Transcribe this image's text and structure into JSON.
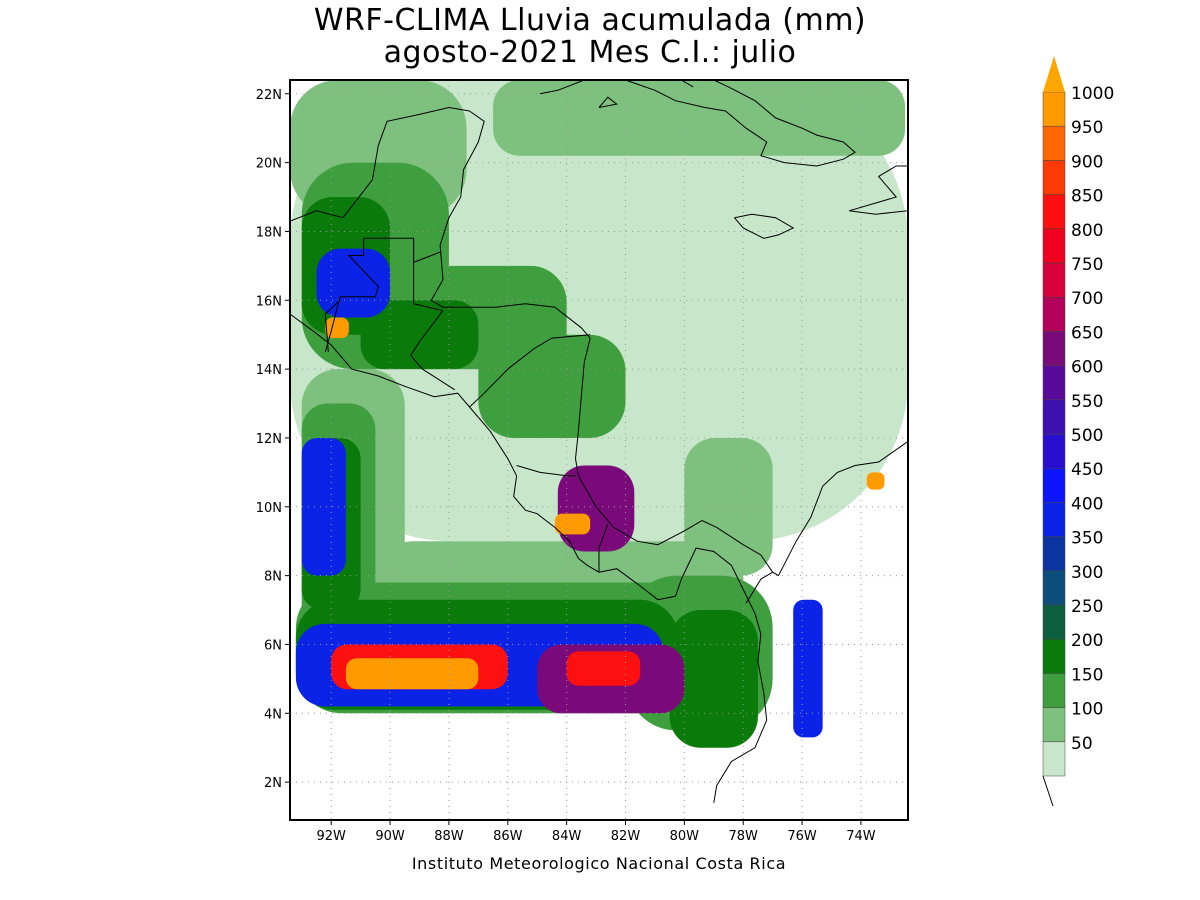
{
  "title": {
    "line1": "WRF-CLIMA Lluvia acumulada (mm)",
    "line2": "agosto-2021 Mes C.I.: julio"
  },
  "credit": "Instituto Meteorologico Nacional Costa Rica",
  "map": {
    "lon_range": [
      -93.4,
      -72.4
    ],
    "lat_range": [
      0.9,
      22.4
    ],
    "lon_ticks": [
      {
        "value": -92,
        "label": "92W"
      },
      {
        "value": -90,
        "label": "90W"
      },
      {
        "value": -88,
        "label": "88W"
      },
      {
        "value": -86,
        "label": "86W"
      },
      {
        "value": -84,
        "label": "84W"
      },
      {
        "value": -82,
        "label": "82W"
      },
      {
        "value": -80,
        "label": "80W"
      },
      {
        "value": -78,
        "label": "78W"
      },
      {
        "value": -76,
        "label": "76W"
      },
      {
        "value": -74,
        "label": "74W"
      }
    ],
    "lat_ticks": [
      {
        "value": 2,
        "label": "2N"
      },
      {
        "value": 4,
        "label": "4N"
      },
      {
        "value": 6,
        "label": "6N"
      },
      {
        "value": 8,
        "label": "8N"
      },
      {
        "value": 10,
        "label": "10N"
      },
      {
        "value": 12,
        "label": "12N"
      },
      {
        "value": 14,
        "label": "14N"
      },
      {
        "value": 16,
        "label": "16N"
      },
      {
        "value": 18,
        "label": "18N"
      },
      {
        "value": 20,
        "label": "20N"
      },
      {
        "value": 22,
        "label": "22N"
      }
    ],
    "grid": "dotted"
  },
  "colorbar": {
    "levels": [
      {
        "label": "50",
        "color": "#c8e6c9"
      },
      {
        "label": "100",
        "color": "#7ec07e"
      },
      {
        "label": "150",
        "color": "#3f9f3f"
      },
      {
        "label": "200",
        "color": "#0a7a0a"
      },
      {
        "label": "250",
        "color": "#0b5e3e"
      },
      {
        "label": "300",
        "color": "#0d4f7c"
      },
      {
        "label": "350",
        "color": "#0a35a0"
      },
      {
        "label": "400",
        "color": "#0a23e6"
      },
      {
        "label": "450",
        "color": "#0d14ff"
      },
      {
        "label": "500",
        "color": "#2a0ed0"
      },
      {
        "label": "550",
        "color": "#3d10b0"
      },
      {
        "label": "600",
        "color": "#5a0a9a"
      },
      {
        "label": "650",
        "color": "#7a0a7a"
      },
      {
        "label": "700",
        "color": "#b4005a"
      },
      {
        "label": "750",
        "color": "#d8003a"
      },
      {
        "label": "800",
        "color": "#f0001e"
      },
      {
        "label": "850",
        "color": "#ff1010"
      },
      {
        "label": "900",
        "color": "#ff3a00"
      },
      {
        "label": "950",
        "color": "#ff6600"
      },
      {
        "label": "1000",
        "color": "#ff9a00"
      }
    ],
    "over_color": "#ffa500",
    "under_color": "#ffffff"
  },
  "rain_fields": [
    {
      "level": "50",
      "color": "#c8e6c9",
      "cells": [
        [
          -93.4,
          22.4,
          21,
          13.4
        ]
      ]
    },
    {
      "level": "100",
      "color": "#7ec07e",
      "cells": [
        [
          -93.4,
          22.4,
          6,
          4
        ],
        [
          -86.5,
          22.4,
          14,
          2.2
        ],
        [
          -93,
          14,
          3.5,
          8
        ],
        [
          -90,
          9,
          12,
          1.8
        ],
        [
          -80,
          12,
          3,
          4
        ]
      ]
    },
    {
      "level": "150",
      "color": "#3f9f3f",
      "cells": [
        [
          -93,
          20,
          5,
          6
        ],
        [
          -90,
          17,
          6,
          3
        ],
        [
          -87,
          15,
          5,
          3
        ],
        [
          -93,
          13,
          2.5,
          7
        ],
        [
          -93.2,
          7.8,
          14,
          3.8
        ],
        [
          -82,
          8,
          5,
          4.5
        ]
      ]
    },
    {
      "level": "200",
      "color": "#0a7a0a",
      "cells": [
        [
          -93,
          19,
          3,
          4
        ],
        [
          -91,
          16,
          4,
          2
        ],
        [
          -93,
          12,
          2,
          5
        ],
        [
          -93.2,
          7.3,
          13,
          3.2
        ],
        [
          -80.5,
          7,
          3,
          4
        ]
      ]
    },
    {
      "level": "400",
      "color": "#0a23e6",
      "cells": [
        [
          -92.5,
          17.5,
          2.5,
          2
        ],
        [
          -93,
          12,
          1.5,
          4
        ],
        [
          -93.2,
          6.6,
          12.5,
          2.4
        ],
        [
          -76.3,
          7.3,
          1,
          4
        ]
      ]
    },
    {
      "level": "650",
      "color": "#7a0a7a",
      "cells": [
        [
          -85,
          6,
          5,
          2
        ],
        [
          -84.3,
          11.2,
          2.6,
          2.5
        ]
      ]
    },
    {
      "level": "850",
      "color": "#ff1010",
      "cells": [
        [
          -92,
          6,
          6,
          1.3
        ],
        [
          -84,
          5.8,
          2.5,
          1
        ]
      ]
    },
    {
      "level": "1000",
      "color": "#ff9a00",
      "cells": [
        [
          -91.5,
          5.6,
          4.5,
          0.9
        ],
        [
          -84.4,
          9.8,
          1.2,
          0.6
        ],
        [
          -73.8,
          11,
          0.6,
          0.5
        ],
        [
          -92.2,
          15.5,
          0.8,
          0.6
        ]
      ]
    }
  ],
  "coastline": {
    "mainland": [
      [
        -93.4,
        15.6
      ],
      [
        -92.6,
        15.1
      ],
      [
        -92.0,
        14.7
      ],
      [
        -91.3,
        14.0
      ],
      [
        -90.4,
        13.8
      ],
      [
        -89.5,
        13.5
      ],
      [
        -88.5,
        13.2
      ],
      [
        -87.7,
        13.3
      ],
      [
        -87.3,
        12.9
      ],
      [
        -86.6,
        12.2
      ],
      [
        -86.0,
        11.4
      ],
      [
        -85.7,
        10.9
      ],
      [
        -85.8,
        10.3
      ],
      [
        -85.4,
        9.9
      ],
      [
        -85.0,
        9.8
      ],
      [
        -84.7,
        9.6
      ],
      [
        -84.4,
        9.4
      ],
      [
        -83.9,
        9.0
      ],
      [
        -83.6,
        8.5
      ],
      [
        -83.3,
        8.3
      ],
      [
        -82.9,
        8.1
      ],
      [
        -82.3,
        8.2
      ],
      [
        -81.5,
        7.7
      ],
      [
        -80.9,
        7.3
      ],
      [
        -80.3,
        7.4
      ],
      [
        -80.1,
        7.9
      ],
      [
        -79.6,
        8.8
      ],
      [
        -79.0,
        8.7
      ],
      [
        -78.4,
        8.3
      ],
      [
        -78.0,
        7.6
      ],
      [
        -77.6,
        6.9
      ],
      [
        -77.4,
        6.3
      ],
      [
        -77.5,
        5.5
      ],
      [
        -77.3,
        4.6
      ],
      [
        -77.2,
        3.8
      ],
      [
        -77.6,
        3.0
      ],
      [
        -78.4,
        2.6
      ],
      [
        -78.9,
        1.9
      ],
      [
        -79.0,
        1.4
      ]
    ],
    "caribbean": [
      [
        -87.3,
        21.5
      ],
      [
        -86.8,
        21.2
      ],
      [
        -87.0,
        20.6
      ],
      [
        -87.5,
        19.8
      ],
      [
        -87.6,
        19.0
      ],
      [
        -88.0,
        18.4
      ],
      [
        -88.3,
        17.6
      ],
      [
        -88.2,
        16.6
      ],
      [
        -88.6,
        16.0
      ],
      [
        -88.2,
        15.8
      ],
      [
        -87.6,
        15.8
      ],
      [
        -86.4,
        15.8
      ],
      [
        -85.4,
        15.9
      ],
      [
        -84.4,
        15.8
      ],
      [
        -83.5,
        15.2
      ],
      [
        -83.2,
        14.9
      ],
      [
        -83.4,
        14.2
      ],
      [
        -83.5,
        13.2
      ],
      [
        -83.6,
        12.2
      ],
      [
        -83.7,
        11.4
      ],
      [
        -83.6,
        10.9
      ],
      [
        -83.0,
        10.0
      ],
      [
        -82.4,
        9.4
      ],
      [
        -81.6,
        9.0
      ],
      [
        -80.9,
        8.9
      ],
      [
        -80.0,
        9.3
      ],
      [
        -79.4,
        9.6
      ],
      [
        -78.9,
        9.4
      ],
      [
        -78.0,
        8.9
      ],
      [
        -77.4,
        8.6
      ],
      [
        -77.0,
        8.1
      ],
      [
        -76.8,
        8.0
      ],
      [
        -76.2,
        9.0
      ],
      [
        -75.7,
        9.7
      ],
      [
        -75.3,
        10.6
      ],
      [
        -74.8,
        11.0
      ],
      [
        -74.2,
        11.2
      ],
      [
        -73.4,
        11.3
      ],
      [
        -72.4,
        11.9
      ]
    ],
    "yucatan_gulf": [
      [
        -91.6,
        18.4
      ],
      [
        -90.6,
        19.5
      ],
      [
        -90.4,
        20.5
      ],
      [
        -90.1,
        21.2
      ],
      [
        -89.0,
        21.4
      ],
      [
        -88.0,
        21.6
      ],
      [
        -87.3,
        21.5
      ]
    ],
    "gulf_mexico": [
      [
        -93.4,
        18.3
      ],
      [
        -92.5,
        18.6
      ],
      [
        -91.6,
        18.4
      ]
    ],
    "cuba": [
      [
        -84.9,
        22.0
      ],
      [
        -84.3,
        22.1
      ],
      [
        -83.4,
        22.4
      ]
    ],
    "cuba_south": [
      [
        -82.0,
        22.4
      ],
      [
        -81.0,
        22.1
      ],
      [
        -80.3,
        21.8
      ],
      [
        -79.3,
        21.6
      ],
      [
        -78.6,
        21.5
      ],
      [
        -77.9,
        21.0
      ],
      [
        -77.2,
        20.6
      ],
      [
        -77.4,
        20.2
      ],
      [
        -76.6,
        20.0
      ],
      [
        -75.5,
        19.9
      ],
      [
        -74.6,
        20.1
      ],
      [
        -74.2,
        20.3
      ],
      [
        -74.6,
        20.6
      ],
      [
        -75.5,
        20.8
      ],
      [
        -76.0,
        21.0
      ],
      [
        -76.9,
        21.3
      ],
      [
        -77.6,
        21.8
      ],
      [
        -78.5,
        22.2
      ],
      [
        -79.0,
        22.4
      ]
    ],
    "jamaica": [
      [
        -78.3,
        18.4
      ],
      [
        -77.7,
        18.5
      ],
      [
        -76.9,
        18.4
      ],
      [
        -76.3,
        18.1
      ],
      [
        -76.8,
        17.9
      ],
      [
        -77.3,
        17.8
      ],
      [
        -78.0,
        18.1
      ],
      [
        -78.3,
        18.4
      ]
    ],
    "hispaniola": [
      [
        -74.4,
        18.6
      ],
      [
        -73.5,
        18.5
      ],
      [
        -72.4,
        18.6
      ],
      [
        -72.4,
        19.9
      ],
      [
        -72.8,
        19.9
      ],
      [
        -73.4,
        19.6
      ],
      [
        -72.8,
        19.0
      ],
      [
        -74.4,
        18.6
      ]
    ],
    "islands": [
      [
        [
          -80.1,
          22.4
        ],
        [
          -79.7,
          22.2
        ]
      ],
      [
        [
          -82.9,
          21.6
        ],
        [
          -82.6,
          21.9
        ],
        [
          -82.3,
          21.7
        ],
        [
          -82.9,
          21.6
        ]
      ]
    ]
  },
  "borders": [
    [
      [
        -92.2,
        14.5
      ],
      [
        -92.0,
        15.1
      ],
      [
        -91.7,
        16.1
      ],
      [
        -90.5,
        16.1
      ],
      [
        -90.4,
        16.4
      ],
      [
        -91.4,
        17.3
      ],
      [
        -90.9,
        17.3
      ],
      [
        -90.9,
        17.8
      ],
      [
        -89.2,
        17.8
      ],
      [
        -89.2,
        15.9
      ],
      [
        -88.2,
        15.7
      ]
    ],
    [
      [
        -89.2,
        17.8
      ],
      [
        -89.2,
        17.1
      ],
      [
        -88.3,
        17.4
      ]
    ],
    [
      [
        -89.3,
        14.4
      ],
      [
        -88.9,
        14.0
      ],
      [
        -87.8,
        13.4
      ]
    ],
    [
      [
        -89.3,
        14.4
      ],
      [
        -89.0,
        14.8
      ],
      [
        -88.2,
        15.7
      ]
    ],
    [
      [
        -87.3,
        12.9
      ],
      [
        -86.8,
        13.3
      ],
      [
        -86.0,
        14.0
      ],
      [
        -85.1,
        14.6
      ],
      [
        -84.5,
        14.9
      ],
      [
        -83.2,
        15.0
      ]
    ],
    [
      [
        -85.7,
        11.2
      ],
      [
        -84.9,
        11.0
      ],
      [
        -84.0,
        10.9
      ],
      [
        -83.7,
        10.9
      ]
    ],
    [
      [
        -82.9,
        8.1
      ],
      [
        -82.9,
        8.8
      ],
      [
        -82.6,
        9.5
      ]
    ],
    [
      [
        -77.9,
        7.2
      ],
      [
        -77.4,
        7.9
      ],
      [
        -77.0,
        8.1
      ]
    ],
    [
      [
        -92.1,
        14.5
      ],
      [
        -92.2,
        15.6
      ],
      [
        -91.7,
        16.0
      ]
    ]
  ]
}
